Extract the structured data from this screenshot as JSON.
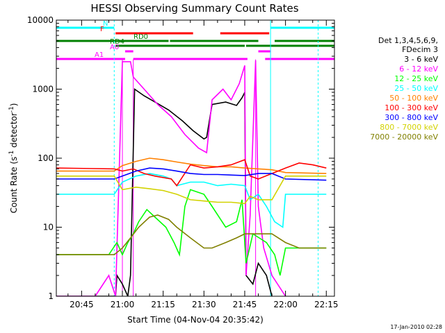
{
  "chart_data": {
    "type": "line",
    "title": "HESSI Observing Summary Count Rates",
    "xlabel": "Start Time (04-Nov-04 20:35:42)",
    "ylabel": "Count Rate (s",
    "ylabel_sup1": "-1",
    "ylabel_mid": " detector",
    "ylabel_sup2": "-1",
    "ylabel_end": ")",
    "yscale": "log",
    "xlim": [
      "20:35:42",
      "22:18:00"
    ],
    "ylim": [
      1,
      10000
    ],
    "xticks": [
      "20:45",
      "21:00",
      "21:15",
      "21:30",
      "21:45",
      "22:00",
      "22:15"
    ],
    "yticks": [
      "1",
      "10",
      "100",
      "1000",
      "10000"
    ],
    "timestamp": "17-Jan-2010 02:28",
    "legend_header": [
      "Det 1,3,4,5,6,9,",
      "FDecim 3"
    ],
    "flags": [
      {
        "label": "N",
        "color": "#00ffff",
        "segments": [
          [
            "20:35:42",
            "20:57:00"
          ],
          [
            "21:54:30",
            "22:18:00"
          ]
        ]
      },
      {
        "label": "F",
        "color": "#ff0000",
        "segments": [
          [
            "20:57:30",
            "21:26:00"
          ],
          [
            "21:36:00",
            "21:54:00"
          ]
        ]
      },
      {
        "label": "RD0",
        "color": "#008000",
        "segments": [
          [
            "20:35:42",
            "21:17:00"
          ],
          [
            "21:17:30",
            "21:50:00"
          ],
          [
            "21:56:00",
            "22:18:00"
          ]
        ]
      },
      {
        "label": "RD4",
        "color": "#008000",
        "segments": [
          [
            "20:57:30",
            "21:45:00"
          ],
          [
            "21:45:30",
            "22:18:00"
          ]
        ]
      },
      {
        "label": "A0",
        "color": "#ff00ff",
        "segments": [
          [
            "21:01:00",
            "21:04:00"
          ],
          [
            "21:50:00",
            "21:54:30"
          ]
        ]
      },
      {
        "label": "A1",
        "color": "#ff00ff",
        "segments": [
          [
            "20:35:42",
            "21:01:00"
          ],
          [
            "21:04:00",
            "21:46:00"
          ],
          [
            "21:52:30",
            "22:18:00"
          ]
        ]
      }
    ],
    "series": [
      {
        "name": "3 - 6 keV",
        "color": "#000000",
        "points": [
          [
            "20:35:42",
            1
          ],
          [
            "20:57:30",
            1
          ],
          [
            "20:58:00",
            2
          ],
          [
            "21:00:00",
            1.5
          ],
          [
            "21:02:00",
            1
          ],
          [
            "21:03:00",
            2
          ],
          [
            "21:04:30",
            1000
          ],
          [
            "21:08:00",
            800
          ],
          [
            "21:12:00",
            650
          ],
          [
            "21:17:00",
            500
          ],
          [
            "21:22:00",
            350
          ],
          [
            "21:26:00",
            250
          ],
          [
            "21:30:00",
            190
          ],
          [
            "21:31:00",
            200
          ],
          [
            "21:33:00",
            600
          ],
          [
            "21:38:00",
            650
          ],
          [
            "21:42:00",
            580
          ],
          [
            "21:44:00",
            750
          ],
          [
            "21:45:00",
            900
          ],
          [
            "21:45:30",
            2
          ],
          [
            "21:48:00",
            1.5
          ],
          [
            "21:50:00",
            3
          ],
          [
            "21:53:00",
            2
          ],
          [
            "21:55:00",
            1
          ]
        ]
      },
      {
        "name": "6 - 12 keV",
        "color": "#ff00ff",
        "points": [
          [
            "20:35:42",
            1
          ],
          [
            "20:50:00",
            1
          ],
          [
            "20:55:00",
            2
          ],
          [
            "20:57:30",
            1
          ],
          [
            "21:00:00",
            2500
          ],
          [
            "21:02:00",
            2500
          ],
          [
            "21:03:00",
            2500
          ],
          [
            "21:04:00",
            1500
          ],
          [
            "21:08:00",
            1000
          ],
          [
            "21:13:00",
            600
          ],
          [
            "21:18:00",
            400
          ],
          [
            "21:23:00",
            220
          ],
          [
            "21:28:00",
            140
          ],
          [
            "21:31:00",
            120
          ],
          [
            "21:33:00",
            700
          ],
          [
            "21:37:00",
            1000
          ],
          [
            "21:40:00",
            700
          ],
          [
            "21:43:00",
            1200
          ],
          [
            "21:45:00",
            2200
          ],
          [
            "21:45:30",
            2
          ],
          [
            "21:47:00",
            15
          ],
          [
            "21:49:00",
            2600
          ],
          [
            "21:50:00",
            20
          ],
          [
            "21:52:00",
            5
          ],
          [
            "21:55:00",
            2
          ],
          [
            "22:00:00",
            1
          ]
        ]
      },
      {
        "name": "12 - 25 keV",
        "color": "#00ff00",
        "points": [
          [
            "20:35:42",
            4
          ],
          [
            "20:55:00",
            4
          ],
          [
            "20:58:00",
            6
          ],
          [
            "21:00:00",
            4
          ],
          [
            "21:02:00",
            6
          ],
          [
            "21:04:00",
            8
          ],
          [
            "21:06:00",
            12
          ],
          [
            "21:09:00",
            18
          ],
          [
            "21:12:00",
            14
          ],
          [
            "21:16:00",
            10
          ],
          [
            "21:19:00",
            6
          ],
          [
            "21:21:00",
            4
          ],
          [
            "21:23:00",
            20
          ],
          [
            "21:25:00",
            35
          ],
          [
            "21:30:00",
            30
          ],
          [
            "21:33:00",
            20
          ],
          [
            "21:38:00",
            10
          ],
          [
            "21:42:00",
            12
          ],
          [
            "21:44:00",
            25
          ],
          [
            "21:45:30",
            3
          ],
          [
            "21:48:00",
            8
          ],
          [
            "21:53:00",
            6
          ],
          [
            "21:56:00",
            4
          ],
          [
            "21:58:00",
            2
          ],
          [
            "22:00:00",
            5
          ],
          [
            "22:15:00",
            5
          ]
        ]
      },
      {
        "name": "25 - 50 keV",
        "color": "#00ffff",
        "points": [
          [
            "20:35:42",
            30
          ],
          [
            "20:57:00",
            30
          ],
          [
            "21:00:00",
            45
          ],
          [
            "21:05:00",
            55
          ],
          [
            "21:10:00",
            60
          ],
          [
            "21:15:00",
            55
          ],
          [
            "21:18:00",
            50
          ],
          [
            "21:20:00",
            40
          ],
          [
            "21:25:00",
            45
          ],
          [
            "21:30:00",
            45
          ],
          [
            "21:35:00",
            40
          ],
          [
            "21:40:00",
            42
          ],
          [
            "21:45:00",
            40
          ],
          [
            "21:47:00",
            25
          ],
          [
            "21:50:00",
            30
          ],
          [
            "21:53:00",
            20
          ],
          [
            "21:56:00",
            12
          ],
          [
            "21:59:00",
            10
          ],
          [
            "22:00:00",
            30
          ],
          [
            "22:15:00",
            30
          ]
        ]
      },
      {
        "name": "50 - 100 keV",
        "color": "#ff8000",
        "points": [
          [
            "20:35:42",
            65
          ],
          [
            "20:57:00",
            65
          ],
          [
            "21:00:00",
            78
          ],
          [
            "21:05:00",
            90
          ],
          [
            "21:10:00",
            100
          ],
          [
            "21:15:00",
            95
          ],
          [
            "21:20:00",
            88
          ],
          [
            "21:25:00",
            82
          ],
          [
            "21:30:00",
            78
          ],
          [
            "21:35:00",
            75
          ],
          [
            "21:40:00",
            75
          ],
          [
            "21:45:00",
            72
          ],
          [
            "21:50:00",
            70
          ],
          [
            "21:55:00",
            68
          ],
          [
            "22:00:00",
            62
          ],
          [
            "22:15:00",
            60
          ]
        ]
      },
      {
        "name": "100 - 300 keV",
        "color": "#ff0000",
        "points": [
          [
            "20:35:42",
            72
          ],
          [
            "20:57:00",
            70
          ],
          [
            "21:00:00",
            65
          ],
          [
            "21:04:00",
            70
          ],
          [
            "21:08:00",
            60
          ],
          [
            "21:12:00",
            55
          ],
          [
            "21:18:00",
            50
          ],
          [
            "21:20:00",
            40
          ],
          [
            "21:25:00",
            80
          ],
          [
            "21:30:00",
            72
          ],
          [
            "21:35:00",
            75
          ],
          [
            "21:40:00",
            80
          ],
          [
            "21:45:00",
            95
          ],
          [
            "21:47:00",
            55
          ],
          [
            "21:50:00",
            50
          ],
          [
            "21:55:00",
            60
          ],
          [
            "22:00:00",
            72
          ],
          [
            "22:05:00",
            85
          ],
          [
            "22:10:00",
            80
          ],
          [
            "22:15:00",
            72
          ]
        ]
      },
      {
        "name": "300 - 800 keV",
        "color": "#0000ff",
        "points": [
          [
            "20:35:42",
            50
          ],
          [
            "20:57:00",
            50
          ],
          [
            "21:00:00",
            55
          ],
          [
            "21:05:00",
            65
          ],
          [
            "21:10:00",
            72
          ],
          [
            "21:15:00",
            70
          ],
          [
            "21:20:00",
            65
          ],
          [
            "21:25:00",
            60
          ],
          [
            "21:30:00",
            58
          ],
          [
            "21:35:00",
            58
          ],
          [
            "21:40:00",
            57
          ],
          [
            "21:45:00",
            56
          ],
          [
            "21:50:00",
            60
          ],
          [
            "21:55:00",
            60
          ],
          [
            "22:00:00",
            50
          ],
          [
            "22:15:00",
            48
          ]
        ]
      },
      {
        "name": "800 - 7000 keV",
        "color": "#d2d200",
        "points": [
          [
            "20:35:42",
            55
          ],
          [
            "20:57:00",
            55
          ],
          [
            "21:00:00",
            35
          ],
          [
            "21:05:00",
            38
          ],
          [
            "21:10:00",
            36
          ],
          [
            "21:15:00",
            34
          ],
          [
            "21:20:00",
            30
          ],
          [
            "21:25:00",
            25
          ],
          [
            "21:30:00",
            24
          ],
          [
            "21:35:00",
            23
          ],
          [
            "21:40:00",
            23
          ],
          [
            "21:45:00",
            22
          ],
          [
            "21:47:00",
            28
          ],
          [
            "21:50:00",
            25
          ],
          [
            "21:55:00",
            25
          ],
          [
            "22:00:00",
            55
          ],
          [
            "22:15:00",
            55
          ]
        ]
      },
      {
        "name": "7000 - 20000 keV",
        "color": "#808000",
        "points": [
          [
            "20:35:42",
            4
          ],
          [
            "20:50:00",
            4
          ],
          [
            "20:57:00",
            4
          ],
          [
            "21:00:00",
            5
          ],
          [
            "21:03:00",
            7
          ],
          [
            "21:06:00",
            10
          ],
          [
            "21:10:00",
            14
          ],
          [
            "21:13:00",
            15
          ],
          [
            "21:17:00",
            13
          ],
          [
            "21:20:00",
            10
          ],
          [
            "21:25:00",
            7
          ],
          [
            "21:30:00",
            5
          ],
          [
            "21:33:00",
            5
          ],
          [
            "21:38:00",
            6
          ],
          [
            "21:42:00",
            7
          ],
          [
            "21:45:00",
            8
          ],
          [
            "21:50:00",
            8
          ],
          [
            "21:55:00",
            8
          ],
          [
            "22:00:00",
            6
          ],
          [
            "22:05:00",
            5
          ],
          [
            "22:15:00",
            5
          ]
        ]
      }
    ]
  }
}
